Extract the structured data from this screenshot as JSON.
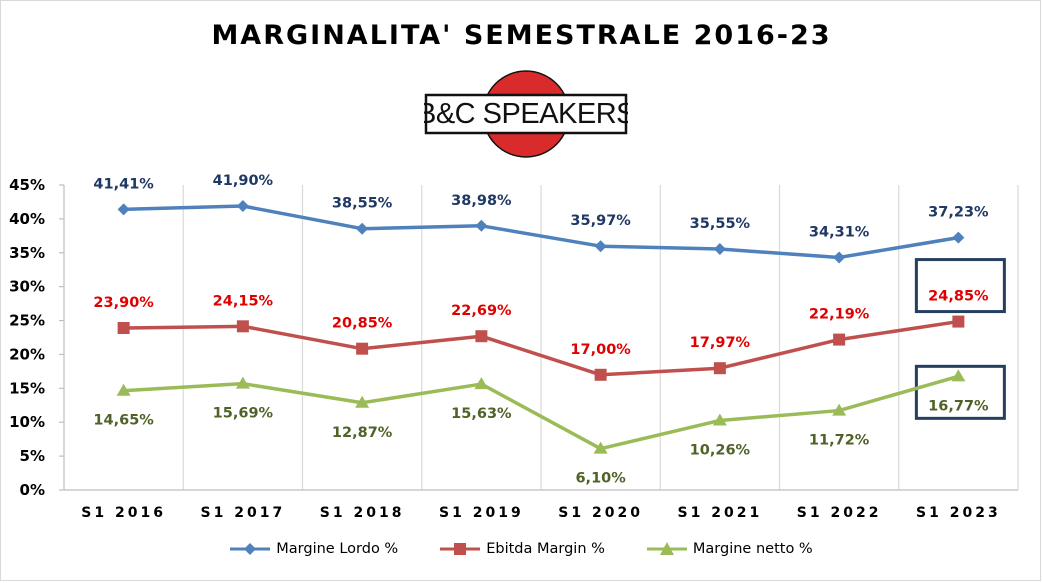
{
  "title": "MARGINALITA' SEMESTRALE 2016-23",
  "logo": {
    "text": "B&C SPEAKERS",
    "colors": {
      "circle": "#d92b2b",
      "border": "#111111",
      "box": "#ffffff"
    }
  },
  "chart_data": {
    "type": "line",
    "title": "MARGINALITA' SEMESTRALE 2016-23",
    "xlabel": "",
    "ylabel": "",
    "categories": [
      "S1 2016",
      "S1 2017",
      "S1 2018",
      "S1 2019",
      "S1 2020",
      "S1 2021",
      "S1 2022",
      "S1 2023"
    ],
    "ylim": [
      0,
      45
    ],
    "yticks": [
      0,
      5,
      10,
      15,
      20,
      25,
      30,
      35,
      40,
      45
    ],
    "ytick_labels": [
      "0%",
      "5%",
      "10%",
      "15%",
      "20%",
      "25%",
      "30%",
      "35%",
      "40%",
      "45%"
    ],
    "grid": "vertical",
    "legend_position": "bottom",
    "series": [
      {
        "name": "Margine Lordo %",
        "values": [
          41.41,
          41.9,
          38.55,
          38.98,
          35.97,
          35.55,
          34.31,
          37.23
        ],
        "labels": [
          "41,41%",
          "41,90%",
          "38,55%",
          "38,98%",
          "35,97%",
          "35,55%",
          "34,31%",
          "37,23%"
        ],
        "color": "#4f81bd",
        "label_color": "#1f3864",
        "marker": "diamond",
        "label_position": "above"
      },
      {
        "name": "Ebitda Margin %",
        "values": [
          23.9,
          24.15,
          20.85,
          22.69,
          17.0,
          17.97,
          22.19,
          24.85
        ],
        "labels": [
          "23,90%",
          "24,15%",
          "20,85%",
          "22,69%",
          "17,00%",
          "17,97%",
          "22,19%",
          "24,85%"
        ],
        "color": "#c0504d",
        "label_color": "#e00000",
        "marker": "square",
        "label_position": "above"
      },
      {
        "name": "Margine netto %",
        "values": [
          14.65,
          15.69,
          12.87,
          15.63,
          6.1,
          10.26,
          11.72,
          16.77
        ],
        "labels": [
          "14,65%",
          "15,69%",
          "12,87%",
          "15,63%",
          "6,10%",
          "10,26%",
          "11,72%",
          "16,77%"
        ],
        "color": "#9bbb59",
        "label_color": "#4f6228",
        "marker": "triangle",
        "label_position": "below"
      }
    ],
    "highlight_boxes": [
      {
        "series": "Ebitda Margin %",
        "category": "S1 2023",
        "color": "#243f60"
      },
      {
        "series": "Margine netto %",
        "category": "S1 2023",
        "color": "#243f60"
      }
    ]
  }
}
